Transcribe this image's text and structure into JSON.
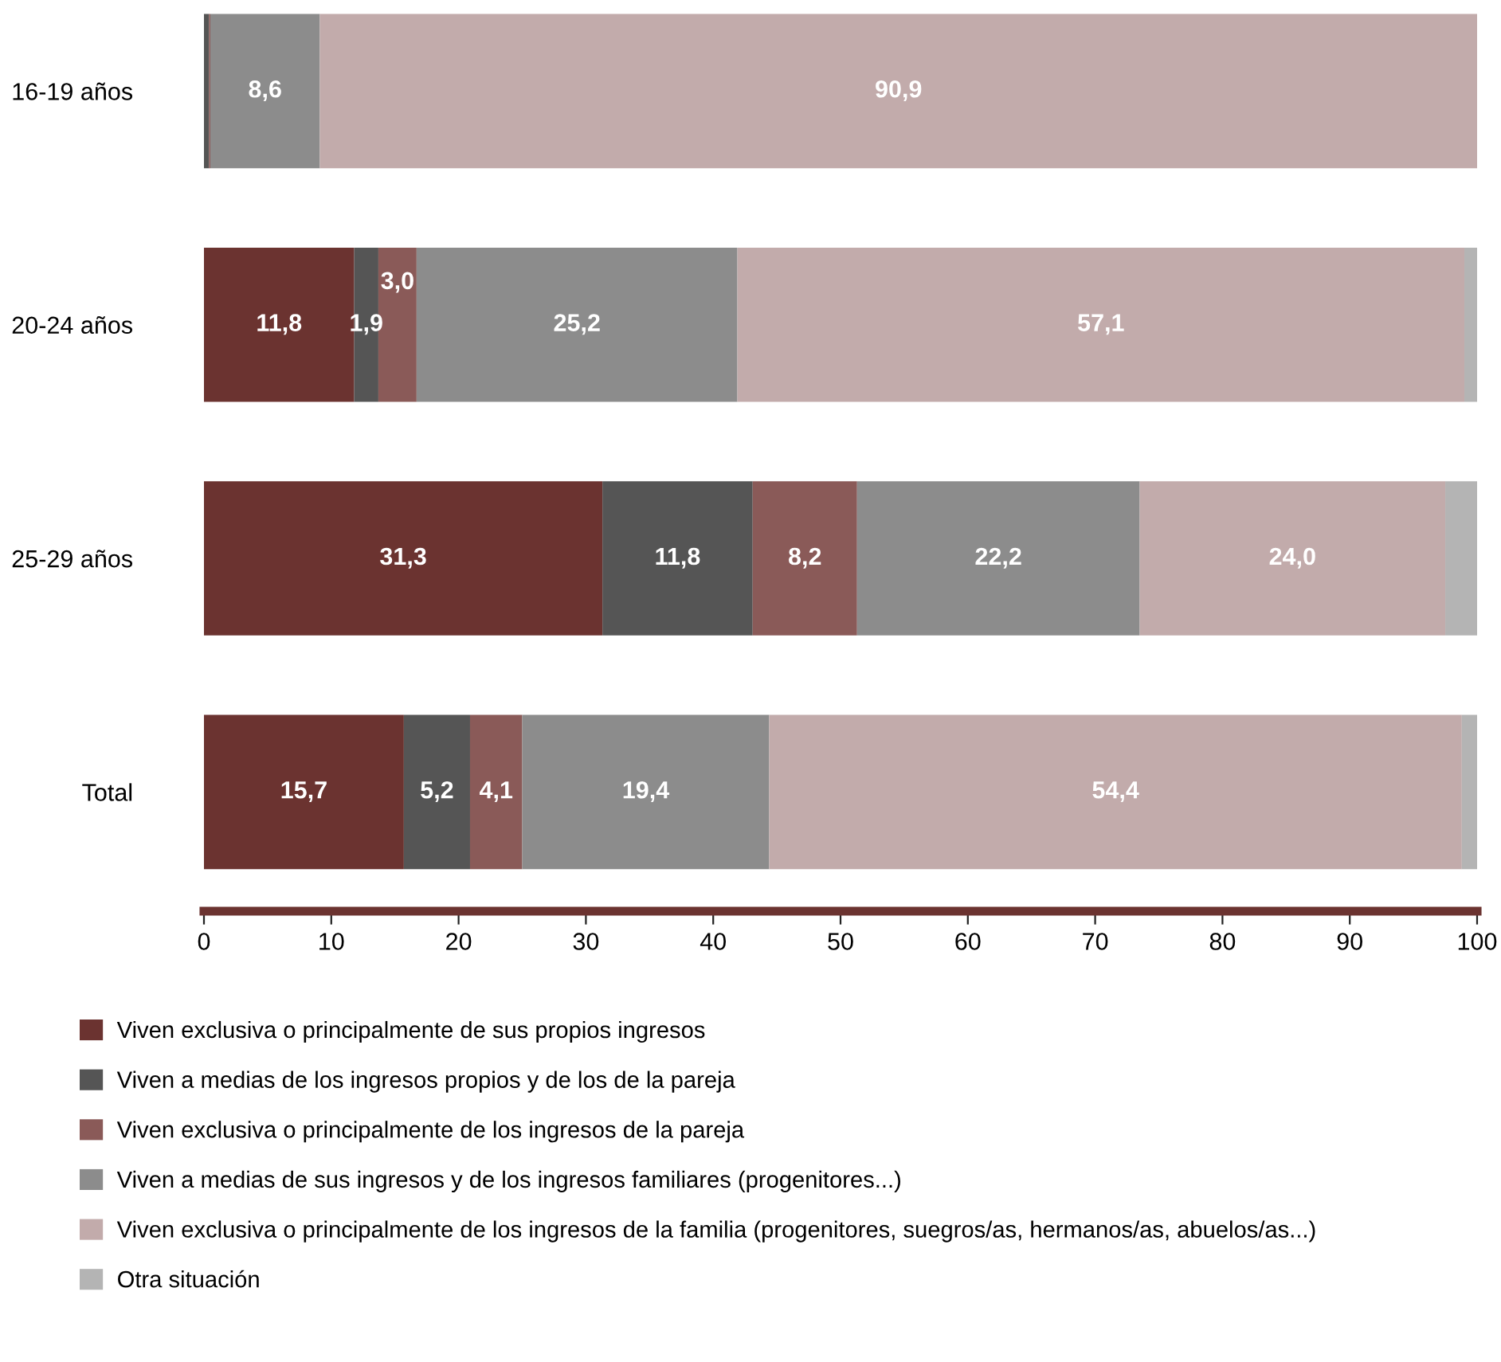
{
  "chart_data": {
    "type": "bar",
    "orientation": "horizontal",
    "stacked": true,
    "categories": [
      "16-19 años",
      "20-24 años",
      "25-29 años",
      "Total"
    ],
    "series": [
      {
        "name": "Viven exclusiva o principalmente de sus propios ingresos",
        "color": "#6b3330",
        "values": [
          null,
          11.8,
          31.3,
          15.7
        ],
        "value_labels": [
          null,
          "11,8",
          "31,3",
          "15,7"
        ]
      },
      {
        "name": "Viven a medias de los ingresos propios y de los de la pareja",
        "color": "#555555",
        "values": [
          0.4,
          1.9,
          11.8,
          5.2
        ],
        "value_labels": [
          null,
          "1,9",
          "11,8",
          "5,2"
        ]
      },
      {
        "name": "Viven exclusiva o principalmente de los ingresos de la pareja",
        "color": "#8a5a58",
        "values": [
          0.1,
          3.0,
          8.2,
          4.1
        ],
        "value_labels": [
          null,
          "3,0",
          "8,2",
          "4,1"
        ]
      },
      {
        "name": "Viven a medias de sus ingresos y de los ingresos familiares (progenitores...)",
        "color": "#8c8c8c",
        "values": [
          8.6,
          25.2,
          22.2,
          19.4
        ],
        "value_labels": [
          "8,6",
          "25,2",
          "22,2",
          "19,4"
        ]
      },
      {
        "name": "Viven exclusiva o principalmente de los ingresos de la familia (progenitores, suegros/as, hermanos/as, abuelos/as...)",
        "color": "#c2abab",
        "values": [
          90.9,
          57.1,
          24.0,
          54.4
        ],
        "value_labels": [
          "90,9",
          "57,1",
          "24,0",
          "54,4"
        ]
      },
      {
        "name": "Otra situación",
        "color": "#b4b4b4",
        "values": [
          null,
          1.0,
          2.5,
          1.2
        ],
        "value_labels": [
          null,
          null,
          null,
          null
        ]
      }
    ],
    "xlim": [
      0,
      100
    ],
    "xticks": [
      0,
      10,
      20,
      30,
      40,
      50,
      60,
      70,
      80,
      90,
      100
    ],
    "grid": false,
    "legend": "bottom"
  }
}
